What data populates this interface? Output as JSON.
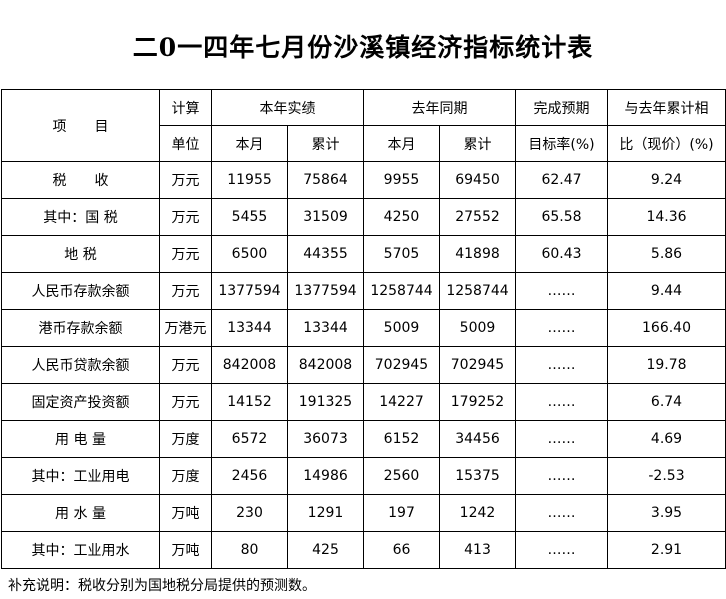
{
  "title": "二0一四年七月份沙溪镇经济指标统计表",
  "header": {
    "item": "项　　目",
    "calc": "计算",
    "unit": "单位",
    "this_year": "本年实绩",
    "last_year": "去年同期",
    "target_rate_top": "完成预期",
    "target_rate_bottom": "目标率(%)",
    "yoy_top": "与去年累计相",
    "yoy_bottom": "比（现价）(%)",
    "month": "本月",
    "cumulative": "累计"
  },
  "rows": [
    {
      "name": "税　　收",
      "unit": "万元",
      "ty_month": "11955",
      "ty_cum": "75864",
      "ly_month": "9955",
      "ly_cum": "69450",
      "target_rate": "62.47",
      "yoy": "9.24"
    },
    {
      "name": "其中：国 税",
      "unit": "万元",
      "ty_month": "5455",
      "ty_cum": "31509",
      "ly_month": "4250",
      "ly_cum": "27552",
      "target_rate": "65.58",
      "yoy": "14.36"
    },
    {
      "name": "地 税",
      "unit": "万元",
      "ty_month": "6500",
      "ty_cum": "44355",
      "ly_month": "5705",
      "ly_cum": "41898",
      "target_rate": "60.43",
      "yoy": "5.86"
    },
    {
      "name": "人民币存款余额",
      "unit": "万元",
      "ty_month": "1377594",
      "ty_cum": "1377594",
      "ly_month": "1258744",
      "ly_cum": "1258744",
      "target_rate": "……",
      "yoy": "9.44"
    },
    {
      "name": "港币存款余额",
      "unit": "万港元",
      "ty_month": "13344",
      "ty_cum": "13344",
      "ly_month": "5009",
      "ly_cum": "5009",
      "target_rate": "……",
      "yoy": "166.40"
    },
    {
      "name": "人民币贷款余额",
      "unit": "万元",
      "ty_month": "842008",
      "ty_cum": "842008",
      "ly_month": "702945",
      "ly_cum": "702945",
      "target_rate": "……",
      "yoy": "19.78"
    },
    {
      "name": "固定资产投资额",
      "unit": "万元",
      "ty_month": "14152",
      "ty_cum": "191325",
      "ly_month": "14227",
      "ly_cum": "179252",
      "target_rate": "……",
      "yoy": "6.74"
    },
    {
      "name": "用 电 量",
      "unit": "万度",
      "ty_month": "6572",
      "ty_cum": "36073",
      "ly_month": "6152",
      "ly_cum": "34456",
      "target_rate": "……",
      "yoy": "4.69"
    },
    {
      "name": "其中：工业用电",
      "unit": "万度",
      "ty_month": "2456",
      "ty_cum": "14986",
      "ly_month": "2560",
      "ly_cum": "15375",
      "target_rate": "……",
      "yoy": "-2.53"
    },
    {
      "name": "用 水 量",
      "unit": "万吨",
      "ty_month": "230",
      "ty_cum": "1291",
      "ly_month": "197",
      "ly_cum": "1242",
      "target_rate": "……",
      "yoy": "3.95"
    },
    {
      "name": "其中：工业用水",
      "unit": "万吨",
      "ty_month": "80",
      "ty_cum": "425",
      "ly_month": "66",
      "ly_cum": "413",
      "target_rate": "……",
      "yoy": "2.91"
    }
  ],
  "note": "补充说明：税收分别为国地税分局提供的预测数。"
}
